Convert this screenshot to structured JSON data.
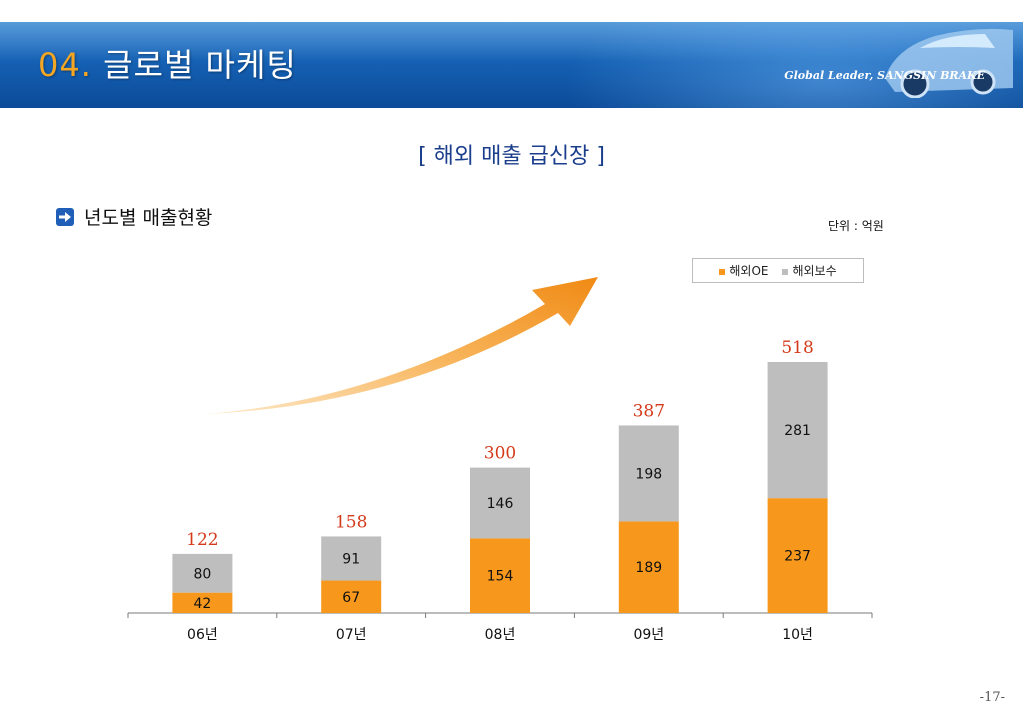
{
  "header": {
    "number": "04.",
    "title": "글로벌 마케팅",
    "tagline": "Global Leader, SANGSIN BRAKE"
  },
  "subtitle": "[ 해외 매출 급신장 ]",
  "section_label": "년도별 매출현황",
  "unit_label": "단위 : 억원",
  "page_number": "-17-",
  "colors": {
    "oe": "#f7981d",
    "service": "#bebebe",
    "total_label": "#d43a1a",
    "title_accent": "#f5a623"
  },
  "chart_data": {
    "type": "bar",
    "stacked": true,
    "categories": [
      "06년",
      "07년",
      "08년",
      "09년",
      "10년"
    ],
    "series": [
      {
        "name": "해외OE",
        "values": [
          42,
          67,
          154,
          189,
          237
        ]
      },
      {
        "name": "해외보수",
        "values": [
          80,
          91,
          146,
          198,
          281
        ]
      }
    ],
    "totals": [
      122,
      158,
      300,
      387,
      518
    ],
    "legend_position": "top-right",
    "grid": false
  }
}
